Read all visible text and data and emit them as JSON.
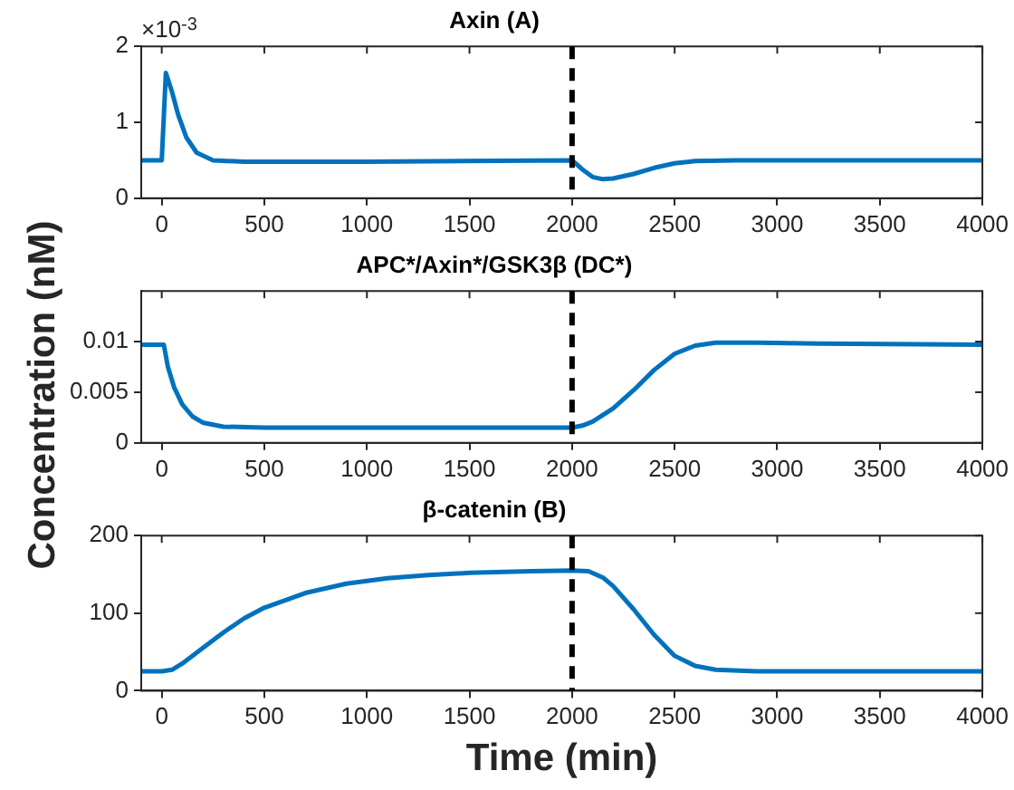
{
  "chart_data": [
    {
      "type": "line",
      "title": "Axin (A)",
      "x": [
        -100,
        0,
        20,
        50,
        80,
        120,
        170,
        250,
        400,
        1000,
        2000,
        2050,
        2100,
        2150,
        2200,
        2300,
        2400,
        2500,
        2600,
        2800,
        4000
      ],
      "series": [
        {
          "color": "#0072bd",
          "values": [
            0.5,
            0.5,
            1.65,
            1.4,
            1.1,
            0.8,
            0.6,
            0.5,
            0.48,
            0.48,
            0.5,
            0.38,
            0.28,
            0.25,
            0.26,
            0.32,
            0.4,
            0.46,
            0.49,
            0.5,
            0.5
          ]
        }
      ],
      "xlim": [
        -100,
        4000
      ],
      "xticks": [
        0,
        500,
        1000,
        1500,
        2000,
        2500,
        3000,
        3500,
        4000
      ],
      "ylim": [
        0,
        2
      ],
      "yticks": [
        0,
        1,
        2
      ],
      "annotations": [
        "×10$^{-3}$"
      ],
      "ref_lines": [
        {
          "axis": "x",
          "value": 2000,
          "color": "#000000",
          "line_style": "dashed"
        }
      ]
    },
    {
      "type": "line",
      "title": "APC*/Axin*/GSK3β (DC*)",
      "ylabel": "Concentration (nM)",
      "x": [
        -100,
        0,
        10,
        30,
        60,
        100,
        150,
        200,
        300,
        500,
        2000,
        2050,
        2100,
        2200,
        2300,
        2400,
        2500,
        2600,
        2700,
        2900,
        3200,
        4000
      ],
      "series": [
        {
          "color": "#0072bd",
          "values": [
            0.0097,
            0.0097,
            0.0097,
            0.0075,
            0.0055,
            0.0038,
            0.0026,
            0.002,
            0.0016,
            0.0015,
            0.0015,
            0.0017,
            0.0021,
            0.0034,
            0.0052,
            0.0072,
            0.0088,
            0.0096,
            0.0099,
            0.0099,
            0.0098,
            0.0097
          ]
        }
      ],
      "xlim": [
        -100,
        4000
      ],
      "xticks": [
        0,
        500,
        1000,
        1500,
        2000,
        2500,
        3000,
        3500,
        4000
      ],
      "ylim": [
        0,
        0.015
      ],
      "yticks": [
        0,
        0.005,
        0.01
      ],
      "ref_lines": [
        {
          "axis": "x",
          "value": 2000,
          "color": "#000000",
          "line_style": "dashed"
        }
      ]
    },
    {
      "type": "line",
      "title": "β-catenin (B)",
      "xlabel": "Time (min)",
      "x": [
        -100,
        0,
        50,
        100,
        200,
        300,
        400,
        500,
        700,
        900,
        1100,
        1300,
        1500,
        1800,
        2000,
        2080,
        2150,
        2200,
        2300,
        2400,
        2500,
        2600,
        2700,
        2900,
        4000
      ],
      "series": [
        {
          "color": "#0072bd",
          "values": [
            25,
            25,
            27,
            35,
            55,
            75,
            93,
            107,
            126,
            138,
            145,
            149,
            152,
            154,
            155,
            154,
            146,
            135,
            105,
            72,
            45,
            32,
            27,
            25,
            25
          ]
        }
      ],
      "xlim": [
        -100,
        4000
      ],
      "xticks": [
        0,
        500,
        1000,
        1500,
        2000,
        2500,
        3000,
        3500,
        4000
      ],
      "ylim": [
        0,
        200
      ],
      "yticks": [
        0,
        100,
        200
      ],
      "ref_lines": [
        {
          "axis": "x",
          "value": 2000,
          "color": "#000000",
          "line_style": "dashed"
        }
      ]
    }
  ]
}
